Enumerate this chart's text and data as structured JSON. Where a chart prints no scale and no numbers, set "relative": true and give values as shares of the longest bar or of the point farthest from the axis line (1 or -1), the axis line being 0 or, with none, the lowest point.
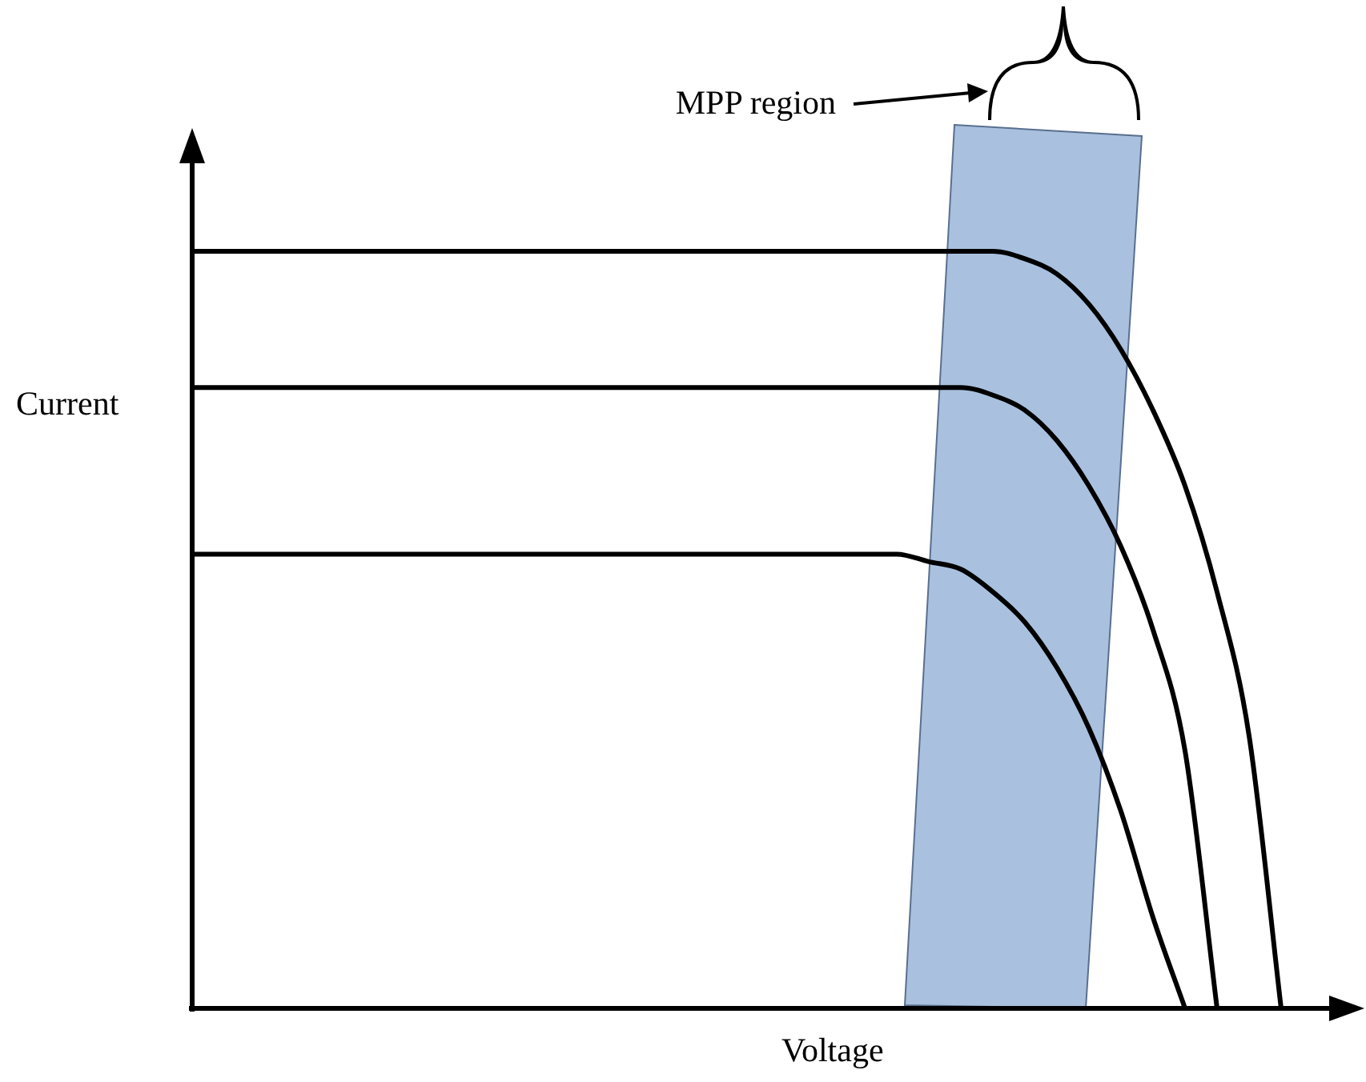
{
  "chart_data": {
    "type": "line",
    "relative": true,
    "xlabel": "Voltage",
    "ylabel": "Current",
    "annotations": [
      "MPP region"
    ],
    "legend": false,
    "marker": "none",
    "line_style": "solid",
    "categories": [
      null,
      null,
      null,
      null,
      null,
      null,
      null,
      null,
      null,
      null,
      null,
      null,
      null,
      null,
      null,
      null,
      null,
      null,
      null,
      null,
      null,
      null,
      null,
      null,
      null,
      null,
      null,
      null,
      null,
      null,
      null,
      null,
      null,
      null,
      null
    ],
    "series": [
      {
        "color": "#000000",
        "values": [
          1,
          1,
          1,
          1,
          1,
          1,
          1,
          1,
          1,
          1,
          1,
          1,
          1,
          1,
          1,
          1,
          1,
          1,
          1,
          1,
          1,
          1,
          1,
          1,
          1,
          1,
          0.99,
          0.97,
          0.93,
          0.87,
          0.79,
          0.69,
          0.55,
          0.36,
          0
        ]
      },
      {
        "color": "#000000",
        "values": [
          0.82,
          0.82,
          0.82,
          0.82,
          0.82,
          0.82,
          0.82,
          0.82,
          0.82,
          0.82,
          0.82,
          0.82,
          0.82,
          0.82,
          0.82,
          0.82,
          0.82,
          0.82,
          0.82,
          0.82,
          0.82,
          0.82,
          0.82,
          0.82,
          0.82,
          0.81,
          0.79,
          0.75,
          0.69,
          0.61,
          0.5,
          0.34,
          0,
          null,
          null
        ]
      },
      {
        "color": "#000000",
        "values": [
          0.6,
          0.6,
          0.6,
          0.6,
          0.6,
          0.6,
          0.6,
          0.6,
          0.6,
          0.6,
          0.6,
          0.6,
          0.6,
          0.6,
          0.6,
          0.6,
          0.6,
          0.6,
          0.6,
          0.6,
          0.6,
          0.6,
          0.6,
          0.59,
          0.58,
          0.55,
          0.51,
          0.45,
          0.37,
          0.26,
          0.12,
          0,
          null,
          null,
          null
        ]
      }
    ]
  }
}
